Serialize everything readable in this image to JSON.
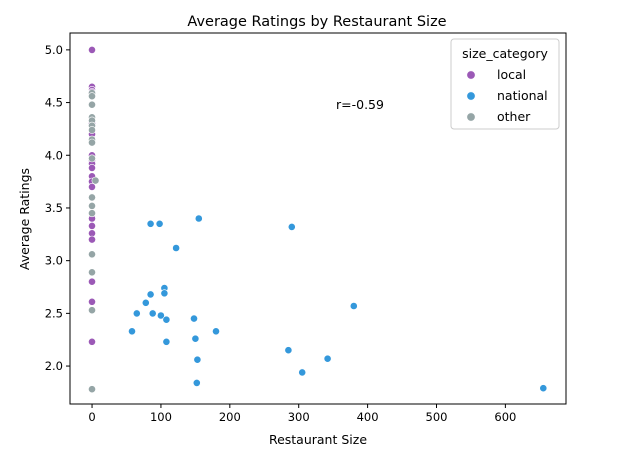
{
  "chart_data": {
    "type": "scatter",
    "title": "Average Ratings by Restaurant Size",
    "xlabel": "Restaurant Size",
    "ylabel": "Average Ratings",
    "xlim": [
      -32,
      688
    ],
    "ylim": [
      1.64,
      5.16
    ],
    "xticks": [
      {
        "value": 0,
        "label": "0"
      },
      {
        "value": 100,
        "label": "100"
      },
      {
        "value": 200,
        "label": "200"
      },
      {
        "value": 300,
        "label": "300"
      },
      {
        "value": 400,
        "label": "400"
      },
      {
        "value": 500,
        "label": "500"
      },
      {
        "value": 600,
        "label": "600"
      }
    ],
    "yticks": [
      {
        "value": 2.0,
        "label": "2.0"
      },
      {
        "value": 2.5,
        "label": "2.5"
      },
      {
        "value": 3.0,
        "label": "3.0"
      },
      {
        "value": 3.5,
        "label": "3.5"
      },
      {
        "value": 4.0,
        "label": "4.0"
      },
      {
        "value": 4.5,
        "label": "4.5"
      },
      {
        "value": 5.0,
        "label": "5.0"
      }
    ],
    "grid": false,
    "legend": {
      "title": "size_category",
      "placement": "top-right"
    },
    "annotation": "r=-0.59",
    "series": [
      {
        "name": "local",
        "color": "#9b59b6",
        "points": [
          [
            0,
            5.0
          ],
          [
            0,
            4.65
          ],
          [
            0,
            4.62
          ],
          [
            0,
            4.6
          ],
          [
            0,
            4.3
          ],
          [
            0,
            4.2
          ],
          [
            0,
            4.0
          ],
          [
            0,
            3.95
          ],
          [
            0,
            3.92
          ],
          [
            0,
            3.88
          ],
          [
            0,
            3.8
          ],
          [
            0,
            3.75
          ],
          [
            0,
            3.7
          ],
          [
            0,
            3.4
          ],
          [
            0,
            3.33
          ],
          [
            0,
            3.26
          ],
          [
            0,
            3.2
          ],
          [
            0,
            2.8
          ],
          [
            0,
            2.61
          ],
          [
            0,
            2.23
          ]
        ]
      },
      {
        "name": "national",
        "color": "#3498db",
        "points": [
          [
            85,
            3.35
          ],
          [
            98,
            3.35
          ],
          [
            155,
            3.4
          ],
          [
            290,
            3.32
          ],
          [
            122,
            3.12
          ],
          [
            105,
            2.74
          ],
          [
            105,
            2.69
          ],
          [
            85,
            2.68
          ],
          [
            78,
            2.6
          ],
          [
            380,
            2.57
          ],
          [
            65,
            2.5
          ],
          [
            88,
            2.5
          ],
          [
            100,
            2.48
          ],
          [
            108,
            2.44
          ],
          [
            148,
            2.45
          ],
          [
            58,
            2.33
          ],
          [
            180,
            2.33
          ],
          [
            108,
            2.23
          ],
          [
            150,
            2.26
          ],
          [
            285,
            2.15
          ],
          [
            153,
            2.06
          ],
          [
            342,
            2.07
          ],
          [
            305,
            1.94
          ],
          [
            152,
            1.84
          ],
          [
            655,
            1.79
          ]
        ]
      },
      {
        "name": "other",
        "color": "#95a5a6",
        "points": [
          [
            0,
            4.59
          ],
          [
            0,
            4.56
          ],
          [
            0,
            4.48
          ],
          [
            0,
            4.36
          ],
          [
            0,
            4.33
          ],
          [
            0,
            4.28
          ],
          [
            0,
            4.24
          ],
          [
            0,
            4.15
          ],
          [
            0,
            4.12
          ],
          [
            0,
            3.97
          ],
          [
            5,
            3.76
          ],
          [
            0,
            3.6
          ],
          [
            0,
            3.52
          ],
          [
            0,
            3.45
          ],
          [
            0,
            3.06
          ],
          [
            0,
            2.89
          ],
          [
            0,
            2.53
          ],
          [
            0,
            1.78
          ]
        ]
      }
    ]
  }
}
